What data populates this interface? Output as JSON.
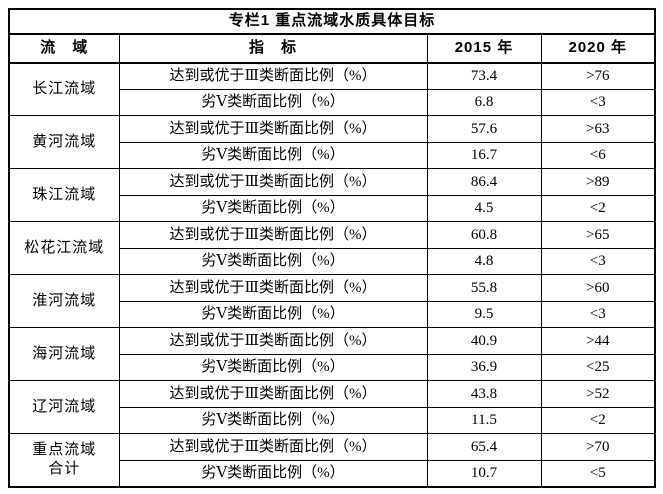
{
  "table": {
    "title": "专栏1 重点流域水质具体目标",
    "headers": {
      "basin": "流　域",
      "indicator": "指　标",
      "y2015": "2015 年",
      "y2020": "2020 年"
    },
    "groups": [
      {
        "basin": "长江流域",
        "rows": [
          {
            "indicator": "达到或优于Ⅲ类断面比例（%）",
            "v2015": "73.4",
            "v2020": ">76"
          },
          {
            "indicator": "劣Ⅴ类断面比例（%）",
            "v2015": "6.8",
            "v2020": "<3"
          }
        ]
      },
      {
        "basin": "黄河流域",
        "rows": [
          {
            "indicator": "达到或优于Ⅲ类断面比例（%）",
            "v2015": "57.6",
            "v2020": ">63"
          },
          {
            "indicator": "劣Ⅴ类断面比例（%）",
            "v2015": "16.7",
            "v2020": "<6"
          }
        ]
      },
      {
        "basin": "珠江流域",
        "rows": [
          {
            "indicator": "达到或优于Ⅲ类断面比例（%）",
            "v2015": "86.4",
            "v2020": ">89"
          },
          {
            "indicator": "劣Ⅴ类断面比例（%）",
            "v2015": "4.5",
            "v2020": "<2"
          }
        ]
      },
      {
        "basin": "松花江流域",
        "rows": [
          {
            "indicator": "达到或优于Ⅲ类断面比例（%）",
            "v2015": "60.8",
            "v2020": ">65"
          },
          {
            "indicator": "劣Ⅴ类断面比例（%）",
            "v2015": "4.8",
            "v2020": "<3"
          }
        ]
      },
      {
        "basin": "淮河流域",
        "rows": [
          {
            "indicator": "达到或优于Ⅲ类断面比例（%）",
            "v2015": "55.8",
            "v2020": ">60"
          },
          {
            "indicator": "劣Ⅴ类断面比例（%）",
            "v2015": "9.5",
            "v2020": "<3"
          }
        ]
      },
      {
        "basin": "海河流域",
        "rows": [
          {
            "indicator": "达到或优于Ⅲ类断面比例（%）",
            "v2015": "40.9",
            "v2020": ">44"
          },
          {
            "indicator": "劣Ⅴ类断面比例（%）",
            "v2015": "36.9",
            "v2020": "<25"
          }
        ]
      },
      {
        "basin": "辽河流域",
        "rows": [
          {
            "indicator": "达到或优于Ⅲ类断面比例（%）",
            "v2015": "43.8",
            "v2020": ">52"
          },
          {
            "indicator": "劣Ⅴ类断面比例（%）",
            "v2015": "11.5",
            "v2020": "<2"
          }
        ]
      },
      {
        "basin": "重点流域\n合计",
        "rows": [
          {
            "indicator": "达到或优于Ⅲ类断面比例（%）",
            "v2015": "65.4",
            "v2020": ">70"
          },
          {
            "indicator": "劣Ⅴ类断面比例（%）",
            "v2015": "10.7",
            "v2020": "<5"
          }
        ]
      }
    ]
  }
}
